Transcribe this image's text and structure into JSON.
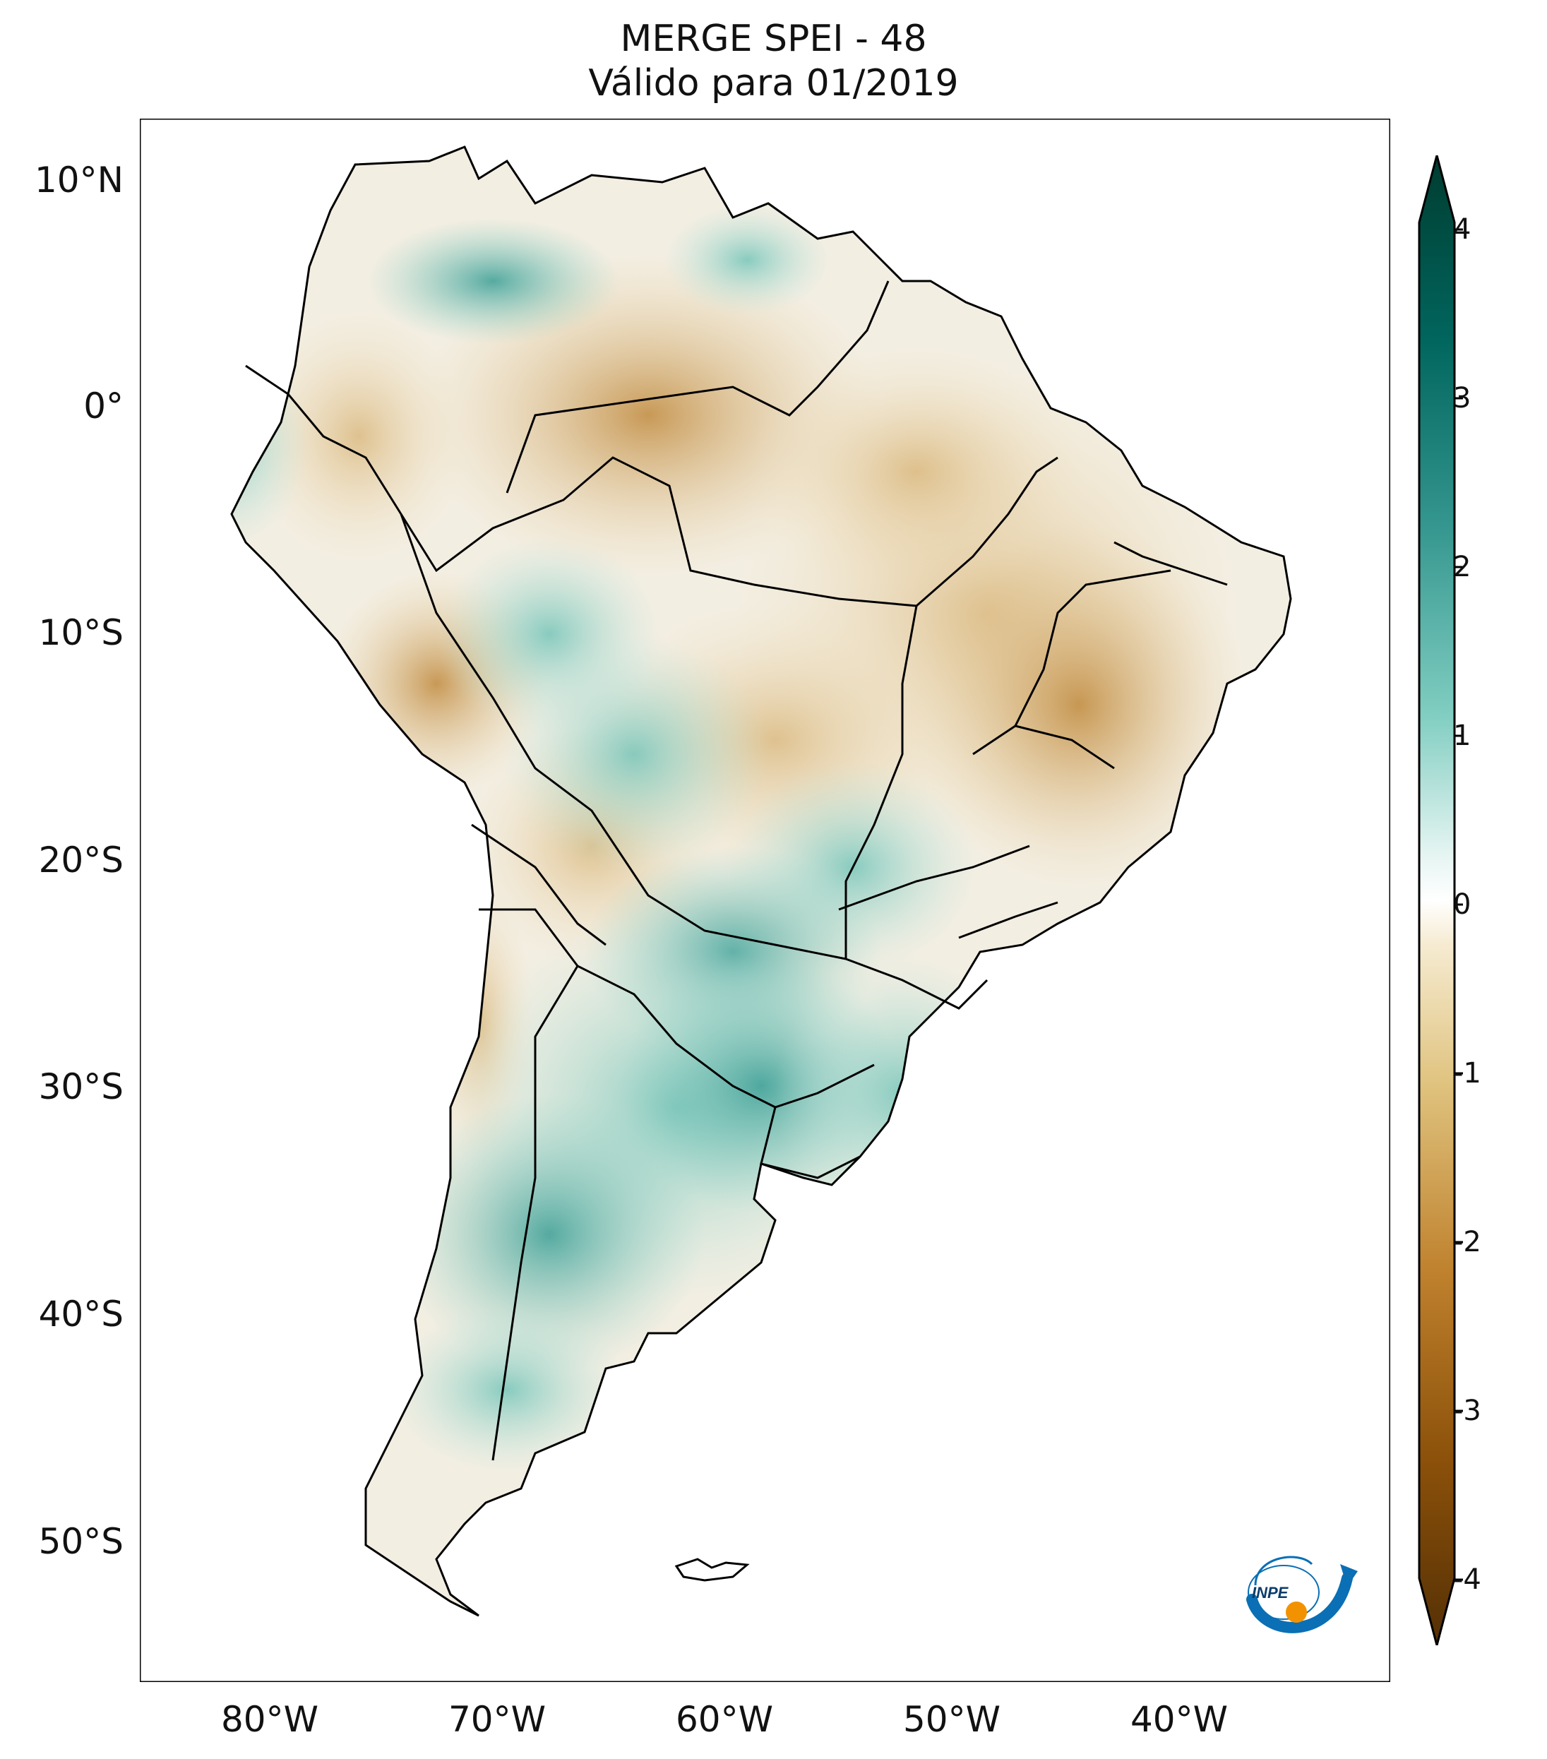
{
  "title": {
    "line1": "MERGE   SPEI - 48",
    "line2": "Válido para 01/2019"
  },
  "map": {
    "region": "South America",
    "lon_range": [
      -85,
      -30
    ],
    "lat_range": [
      -56,
      13
    ],
    "lat_ticks": [
      {
        "value": 10,
        "label": "10°N"
      },
      {
        "value": 0,
        "label": "0°"
      },
      {
        "value": -10,
        "label": "10°S"
      },
      {
        "value": -20,
        "label": "20°S"
      },
      {
        "value": -30,
        "label": "30°S"
      },
      {
        "value": -40,
        "label": "40°S"
      },
      {
        "value": -50,
        "label": "50°S"
      }
    ],
    "lon_ticks": [
      {
        "value": -80,
        "label": "80°W"
      },
      {
        "value": -70,
        "label": "70°W"
      },
      {
        "value": -60,
        "label": "60°W"
      },
      {
        "value": -50,
        "label": "50°W"
      },
      {
        "value": -40,
        "label": "40°W"
      }
    ],
    "colors": {
      "wet_strong": "#003c30",
      "wet": "#35978f",
      "neutral": "#f5f5f5",
      "dry": "#dfc27d",
      "dry_strong": "#543005",
      "border": "#000000"
    }
  },
  "colorbar": {
    "min": -4,
    "max": 4,
    "extend": "both",
    "tick_labels": [
      "4",
      "3",
      "2",
      "1",
      "0",
      "-1",
      "-2",
      "-3",
      "-4"
    ]
  },
  "logo": {
    "text": "INPE"
  }
}
